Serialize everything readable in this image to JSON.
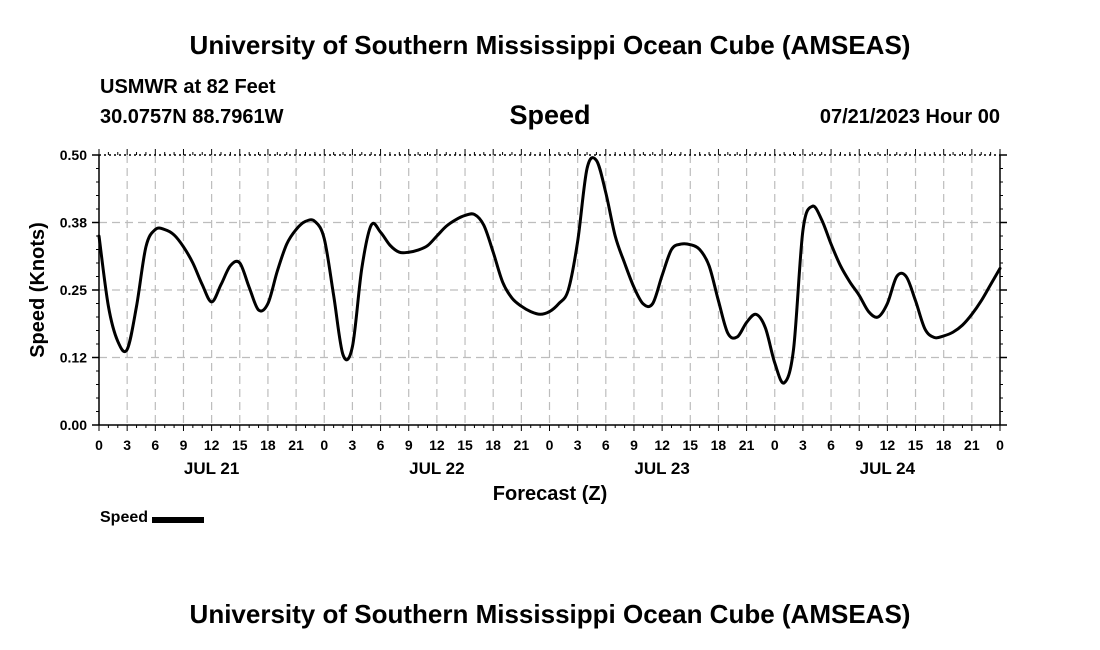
{
  "header": {
    "title": "University of Southern Mississippi Ocean Cube (AMSEAS)",
    "station": "USMWR at 82 Feet",
    "coords": "30.0757N  88.7961W",
    "chart_title": "Speed",
    "forecast_time": "07/21/2023 Hour 00"
  },
  "footer": {
    "title": "University of Southern Mississippi Ocean Cube (AMSEAS)"
  },
  "legend": {
    "label": "Speed"
  },
  "colors": {
    "line": "#000000",
    "grid": "#bdbdbd",
    "background": "#ffffff"
  },
  "chart_data": {
    "type": "line",
    "title": "Speed",
    "xlabel": "Forecast (Z)",
    "ylabel": "Speed (Knots)",
    "xlim": [
      0,
      96
    ],
    "ylim": [
      0,
      0.5
    ],
    "grid": true,
    "yticks": [
      0.0,
      0.125,
      0.25,
      0.375,
      0.5
    ],
    "ytick_labels": [
      "0.00",
      "0.12",
      "0.25",
      "0.38",
      "0.50"
    ],
    "xticks": [
      0,
      3,
      6,
      9,
      12,
      15,
      18,
      21,
      24,
      27,
      30,
      33,
      36,
      39,
      42,
      45,
      48,
      51,
      54,
      57,
      60,
      63,
      66,
      69,
      72,
      75,
      78,
      81,
      84,
      87,
      90,
      93,
      96
    ],
    "xtick_labels": [
      "0",
      "3",
      "6",
      "9",
      "12",
      "15",
      "18",
      "21",
      "0",
      "3",
      "6",
      "9",
      "12",
      "15",
      "18",
      "21",
      "0",
      "3",
      "6",
      "9",
      "12",
      "15",
      "18",
      "21",
      "0",
      "3",
      "6",
      "9",
      "12",
      "15",
      "18",
      "21",
      "0"
    ],
    "day_labels": [
      {
        "label": "JUL 21",
        "x": 12
      },
      {
        "label": "JUL 22",
        "x": 36
      },
      {
        "label": "JUL 23",
        "x": 60
      },
      {
        "label": "JUL 24",
        "x": 84
      }
    ],
    "series": [
      {
        "name": "Speed",
        "x": [
          0,
          1,
          2,
          3,
          4,
          5,
          6,
          7,
          8,
          9,
          10,
          11,
          12,
          13,
          14,
          15,
          16,
          17,
          18,
          19,
          20,
          21,
          22,
          23,
          24,
          25,
          26,
          27,
          28,
          29,
          30,
          31,
          32,
          33,
          34,
          35,
          36,
          37,
          38,
          39,
          40,
          41,
          42,
          43,
          44,
          45,
          46,
          47,
          48,
          49,
          50,
          51,
          52,
          53,
          54,
          55,
          56,
          57,
          58,
          59,
          60,
          61,
          62,
          63,
          64,
          65,
          66,
          67,
          68,
          69,
          70,
          71,
          72,
          73,
          74,
          75,
          76,
          77,
          78,
          79,
          80,
          81,
          82,
          83,
          84,
          85,
          86,
          87,
          88,
          89,
          90,
          91,
          92,
          93,
          94,
          95,
          96
        ],
        "values": [
          0.35,
          0.22,
          0.155,
          0.14,
          0.22,
          0.33,
          0.362,
          0.362,
          0.352,
          0.33,
          0.3,
          0.26,
          0.228,
          0.26,
          0.295,
          0.3,
          0.255,
          0.213,
          0.225,
          0.285,
          0.335,
          0.362,
          0.377,
          0.377,
          0.345,
          0.24,
          0.13,
          0.145,
          0.29,
          0.37,
          0.357,
          0.333,
          0.32,
          0.32,
          0.324,
          0.332,
          0.35,
          0.368,
          0.38,
          0.388,
          0.39,
          0.37,
          0.32,
          0.265,
          0.235,
          0.22,
          0.21,
          0.205,
          0.21,
          0.225,
          0.25,
          0.34,
          0.475,
          0.49,
          0.43,
          0.35,
          0.3,
          0.255,
          0.224,
          0.225,
          0.277,
          0.325,
          0.335,
          0.334,
          0.325,
          0.295,
          0.23,
          0.17,
          0.163,
          0.19,
          0.205,
          0.18,
          0.115,
          0.078,
          0.14,
          0.36,
          0.405,
          0.38,
          0.335,
          0.295,
          0.265,
          0.24,
          0.21,
          0.2,
          0.225,
          0.275,
          0.275,
          0.23,
          0.178,
          0.162,
          0.165,
          0.172,
          0.185,
          0.205,
          0.23,
          0.26,
          0.29
        ]
      }
    ]
  }
}
